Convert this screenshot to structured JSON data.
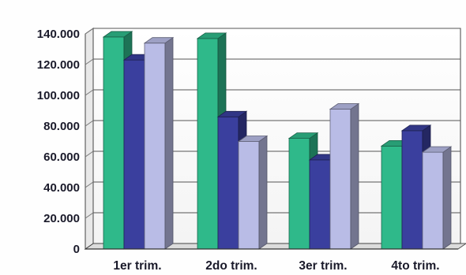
{
  "chart_data": {
    "type": "bar",
    "title": "",
    "xlabel": "",
    "ylabel": "",
    "categories": [
      "1er trim.",
      "2do trim.",
      "3er trim.",
      "4to trim."
    ],
    "series": [
      {
        "values": [
          138000,
          137000,
          72000,
          67000
        ],
        "color": "#2fb98a"
      },
      {
        "values": [
          123000,
          86000,
          58000,
          77000
        ],
        "color": "#3a3f9e"
      },
      {
        "values": [
          134000,
          70000,
          91000,
          63000
        ],
        "color": "#b9bce6"
      }
    ],
    "ylim": [
      0,
      140000
    ],
    "yticks": [
      0,
      20000,
      40000,
      60000,
      80000,
      100000,
      120000,
      140000
    ],
    "ytick_labels": [
      "0",
      "20.000",
      "40.000",
      "60.000",
      "80.000",
      "100.000",
      "120.000",
      "140.000"
    ],
    "grid": true,
    "style": "3d-clustered-column"
  }
}
